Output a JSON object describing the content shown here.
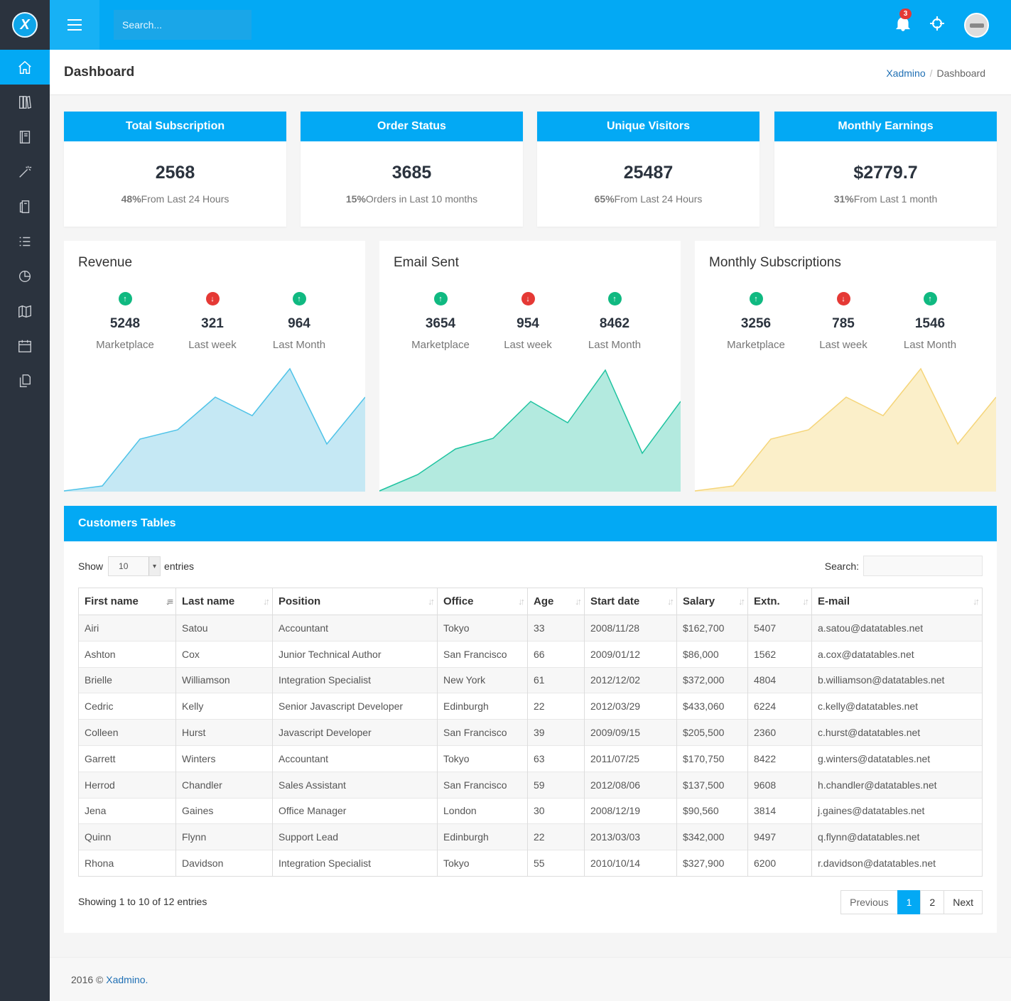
{
  "search": {
    "placeholder": "Search..."
  },
  "notifications": {
    "count": "3"
  },
  "page": {
    "title": "Dashboard"
  },
  "breadcrumb": {
    "home": "Xadmino",
    "current": "Dashboard"
  },
  "stats": [
    {
      "title": "Total Subscription",
      "value": "2568",
      "pct": "48%",
      "text": "From Last 24 Hours"
    },
    {
      "title": "Order Status",
      "value": "3685",
      "pct": "15%",
      "text": "Orders in Last 10 months"
    },
    {
      "title": "Unique Visitors",
      "value": "25487",
      "pct": "65%",
      "text": "From Last 24 Hours"
    },
    {
      "title": "Monthly Earnings",
      "value": "$2779.7",
      "pct": "31%",
      "text": "From Last 1 month"
    }
  ],
  "charts": [
    {
      "title": "Revenue",
      "stats": [
        {
          "dir": "up",
          "value": "5248",
          "label": "Marketplace"
        },
        {
          "dir": "down",
          "value": "321",
          "label": "Last week"
        },
        {
          "dir": "up",
          "value": "964",
          "label": "Last Month"
        }
      ],
      "color": "#4fc3e8",
      "fill": "#c5e8f4"
    },
    {
      "title": "Email Sent",
      "stats": [
        {
          "dir": "up",
          "value": "3654",
          "label": "Marketplace"
        },
        {
          "dir": "down",
          "value": "954",
          "label": "Last week"
        },
        {
          "dir": "up",
          "value": "8462",
          "label": "Last Month"
        }
      ],
      "color": "#1ec3a0",
      "fill": "#b3eadf"
    },
    {
      "title": "Monthly Subscriptions",
      "stats": [
        {
          "dir": "up",
          "value": "3256",
          "label": "Marketplace"
        },
        {
          "dir": "down",
          "value": "785",
          "label": "Last week"
        },
        {
          "dir": "up",
          "value": "1546",
          "label": "Last Month"
        }
      ],
      "color": "#f5d57a",
      "fill": "#fbefc9"
    }
  ],
  "table": {
    "title": "Customers Tables",
    "show_label": "Show",
    "entries_label": "entries",
    "page_length": "10",
    "search_label": "Search:",
    "columns": [
      "First name",
      "Last name",
      "Position",
      "Office",
      "Age",
      "Start date",
      "Salary",
      "Extn.",
      "E-mail"
    ],
    "rows": [
      [
        "Airi",
        "Satou",
        "Accountant",
        "Tokyo",
        "33",
        "2008/11/28",
        "$162,700",
        "5407",
        "a.satou@datatables.net"
      ],
      [
        "Ashton",
        "Cox",
        "Junior Technical Author",
        "San Francisco",
        "66",
        "2009/01/12",
        "$86,000",
        "1562",
        "a.cox@datatables.net"
      ],
      [
        "Brielle",
        "Williamson",
        "Integration Specialist",
        "New York",
        "61",
        "2012/12/02",
        "$372,000",
        "4804",
        "b.williamson@datatables.net"
      ],
      [
        "Cedric",
        "Kelly",
        "Senior Javascript Developer",
        "Edinburgh",
        "22",
        "2012/03/29",
        "$433,060",
        "6224",
        "c.kelly@datatables.net"
      ],
      [
        "Colleen",
        "Hurst",
        "Javascript Developer",
        "San Francisco",
        "39",
        "2009/09/15",
        "$205,500",
        "2360",
        "c.hurst@datatables.net"
      ],
      [
        "Garrett",
        "Winters",
        "Accountant",
        "Tokyo",
        "63",
        "2011/07/25",
        "$170,750",
        "8422",
        "g.winters@datatables.net"
      ],
      [
        "Herrod",
        "Chandler",
        "Sales Assistant",
        "San Francisco",
        "59",
        "2012/08/06",
        "$137,500",
        "9608",
        "h.chandler@datatables.net"
      ],
      [
        "Jena",
        "Gaines",
        "Office Manager",
        "London",
        "30",
        "2008/12/19",
        "$90,560",
        "3814",
        "j.gaines@datatables.net"
      ],
      [
        "Quinn",
        "Flynn",
        "Support Lead",
        "Edinburgh",
        "22",
        "2013/03/03",
        "$342,000",
        "9497",
        "q.flynn@datatables.net"
      ],
      [
        "Rhona",
        "Davidson",
        "Integration Specialist",
        "Tokyo",
        "55",
        "2010/10/14",
        "$327,900",
        "6200",
        "r.davidson@datatables.net"
      ]
    ],
    "info": "Showing 1 to 10 of 12 entries",
    "pager": {
      "prev": "Previous",
      "pages": [
        "1",
        "2"
      ],
      "next": "Next"
    }
  },
  "footer": {
    "year": "2016 © ",
    "brand": "Xadmino",
    "dot": "."
  },
  "colors": {
    "primary": "#03a9f4",
    "sidebar": "#2b333e"
  }
}
